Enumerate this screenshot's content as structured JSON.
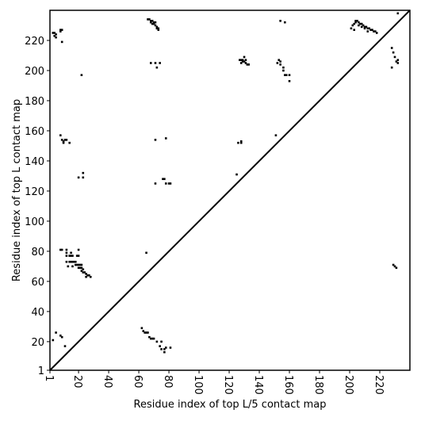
{
  "chart_data": {
    "type": "contact-map",
    "xlabel": "Residue index of top L/5 contact map",
    "ylabel": "Residue index of top L contact map",
    "xlim": [
      1,
      240
    ],
    "ylim": [
      1,
      240
    ],
    "xticks": [
      1,
      20,
      40,
      60,
      80,
      100,
      120,
      140,
      160,
      180,
      200,
      220
    ],
    "yticks": [
      1,
      20,
      40,
      60,
      80,
      100,
      120,
      140,
      160,
      180,
      200,
      220
    ],
    "diagonal": true,
    "color": "#000000",
    "x": [
      3,
      4,
      4,
      5,
      5,
      8,
      9,
      8,
      9,
      66,
      67,
      68,
      69,
      70,
      70,
      71,
      71,
      72,
      72,
      73,
      73,
      68,
      69,
      22,
      68,
      71,
      74,
      72,
      127,
      128,
      129,
      130,
      130,
      128,
      131,
      132,
      133,
      131,
      129,
      152,
      153,
      154,
      154,
      156,
      156,
      157,
      158,
      160,
      160,
      8,
      9,
      10,
      11,
      12,
      10,
      14,
      20,
      23,
      23,
      71,
      78,
      76,
      77,
      78,
      80,
      81,
      71,
      126,
      128,
      128,
      125,
      151,
      154,
      157,
      8,
      9,
      12,
      12,
      12,
      12,
      14,
      15,
      16,
      15,
      14,
      15,
      16,
      17,
      18,
      19,
      20,
      20,
      18,
      19,
      20,
      21,
      22,
      21,
      22,
      23,
      22,
      23,
      24,
      25,
      26,
      25,
      27,
      28,
      13,
      16,
      20,
      65,
      201,
      202,
      203,
      204,
      204,
      205,
      206,
      207,
      208,
      209,
      210,
      211,
      212,
      213,
      214,
      215,
      216,
      217,
      218,
      203,
      206,
      208,
      210,
      212,
      232,
      228,
      229,
      230,
      231,
      232,
      232,
      228,
      229,
      230,
      231,
      3,
      5,
      8,
      9,
      11,
      62,
      63,
      64,
      65,
      66,
      67,
      68,
      69,
      70,
      72,
      74,
      75,
      75,
      77,
      78,
      81,
      77
    ],
    "values": [
      225,
      225,
      223,
      222,
      224,
      227,
      227,
      226,
      219,
      234,
      234,
      233,
      233,
      232,
      231,
      232,
      230,
      229,
      228,
      227,
      228,
      232,
      231,
      197,
      205,
      205,
      205,
      202,
      207,
      207,
      207,
      206,
      209,
      205,
      205,
      204,
      204,
      207,
      206,
      205,
      207,
      206,
      204,
      202,
      200,
      197,
      197,
      197,
      193,
      157,
      154,
      153,
      154,
      154,
      152,
      152,
      129,
      129,
      132,
      154,
      155,
      128,
      128,
      125,
      125,
      125,
      125,
      152,
      153,
      152,
      131,
      157,
      233,
      232,
      81,
      81,
      81,
      79,
      77,
      73,
      77,
      77,
      77,
      79,
      73,
      73,
      73,
      73,
      73,
      77,
      77,
      81,
      71,
      71,
      71,
      71,
      71,
      69,
      69,
      68,
      67,
      66,
      66,
      65,
      64,
      63,
      64,
      63,
      70,
      70,
      69,
      79,
      228,
      230,
      231,
      232,
      233,
      233,
      232,
      231,
      231,
      230,
      229,
      229,
      228,
      228,
      227,
      227,
      226,
      226,
      225,
      227,
      230,
      229,
      228,
      226,
      238,
      215,
      212,
      209,
      206,
      205,
      207,
      202,
      71,
      70,
      69,
      21,
      26,
      24,
      23,
      17,
      29,
      27,
      26,
      26,
      26,
      23,
      22,
      22,
      22,
      20,
      17,
      15,
      20,
      13,
      16,
      16,
      15
    ]
  }
}
